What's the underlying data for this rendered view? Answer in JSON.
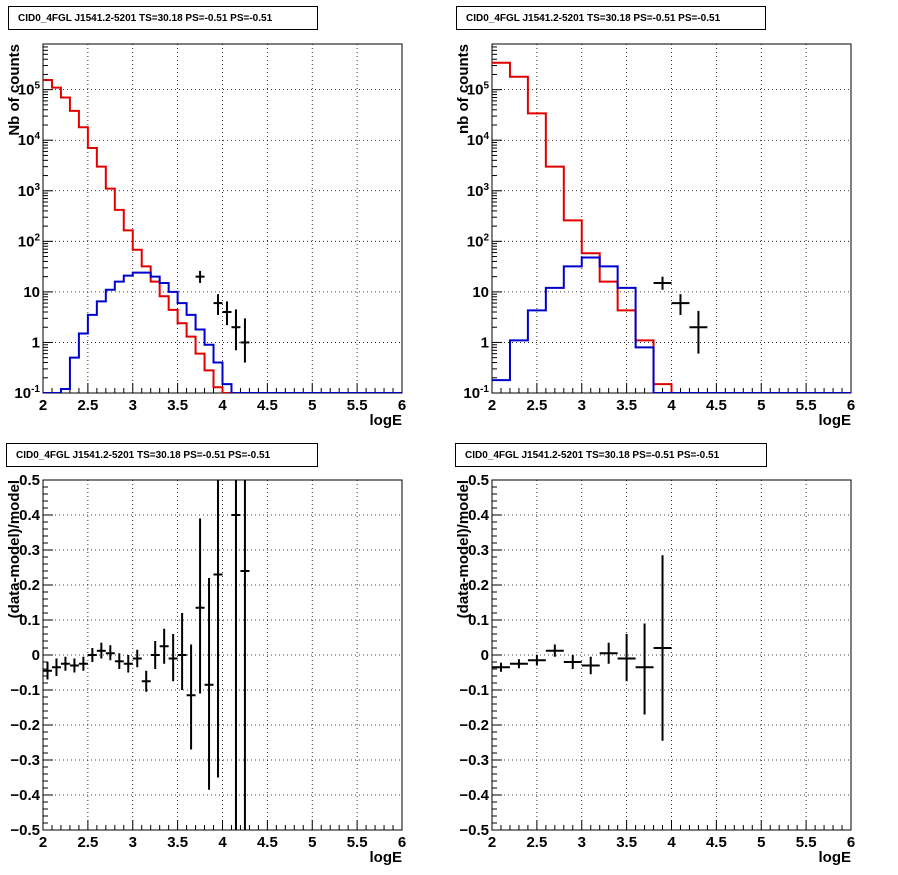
{
  "chart_data": [
    {
      "type": "line",
      "title": "CID0_4FGL J1541.2-5201 TS=30.18 PS=-0.51 PS=-0.51",
      "xlabel": "logE",
      "ylabel": "Nb of counts",
      "xlim": [
        2,
        6
      ],
      "ylim": [
        0.1,
        800000
      ],
      "yscale": "log",
      "xticks": [
        "2",
        "2.5",
        "3",
        "3.5",
        "4",
        "4.5",
        "5",
        "5.5",
        "6"
      ],
      "yticks": [
        "10^{-1}",
        "1",
        "10",
        "10^{2}",
        "10^{3}",
        "10^{4}",
        "10^{5}"
      ],
      "grid": true,
      "colors": {
        "model": "#e00000",
        "source": "#0000cc",
        "data": "#000000"
      },
      "series": [
        {
          "style": "step",
          "color": "#e00000",
          "edges_from": 2.0,
          "bin_width": 0.1,
          "values": [
            155000,
            110000,
            70000,
            38000,
            18000,
            7000,
            3000,
            1100,
            420,
            165,
            68,
            32,
            16,
            8.2,
            4.4,
            2.4,
            1.3,
            0.6,
            0.28,
            0.13,
            0.1,
            0.1,
            0.1,
            0.1,
            0.1,
            0.1,
            0.1,
            0.1,
            0.1,
            0.1,
            0.1,
            0.1,
            0.1,
            0.1,
            0.1,
            0.1,
            0.1,
            0.1,
            0.1,
            0.1
          ]
        },
        {
          "style": "step",
          "color": "#0000cc",
          "edges_from": 2.0,
          "bin_width": 0.1,
          "values": [
            0.1,
            0.1,
            0.12,
            0.5,
            1.5,
            3.5,
            6.5,
            11,
            16,
            21,
            24,
            24,
            20,
            15,
            10,
            6,
            3.5,
            1.8,
            0.9,
            0.4,
            0.15,
            0.1,
            0.1,
            0.1,
            0.1,
            0.1,
            0.1,
            0.1,
            0.1,
            0.1,
            0.1,
            0.1,
            0.1,
            0.1,
            0.1,
            0.1,
            0.1,
            0.1,
            0.1,
            0.1
          ]
        },
        {
          "style": "points",
          "color": "#000000",
          "bin_width": 0.1,
          "points": [
            {
              "x": 3.75,
              "y": 20,
              "lo": 15,
              "hi": 26
            },
            {
              "x": 3.95,
              "y": 6,
              "lo": 3.5,
              "hi": 9
            },
            {
              "x": 4.05,
              "y": 4,
              "lo": 2.2,
              "hi": 6.5
            },
            {
              "x": 4.15,
              "y": 2,
              "lo": 0.7,
              "hi": 4.5
            },
            {
              "x": 4.25,
              "y": 1,
              "lo": 0.4,
              "hi": 3
            }
          ]
        }
      ]
    },
    {
      "type": "line",
      "title": "CID0_4FGL J1541.2-5201 TS=30.18 PS=-0.51 PS=-0.51",
      "xlabel": "logE",
      "ylabel": "nb of counts",
      "xlim": [
        2,
        6
      ],
      "ylim": [
        0.1,
        800000
      ],
      "yscale": "log",
      "xticks": [
        "2",
        "2.5",
        "3",
        "3.5",
        "4",
        "4.5",
        "5",
        "5.5",
        "6"
      ],
      "yticks": [
        "10^{-1}",
        "1",
        "10",
        "10^{2}",
        "10^{3}",
        "10^{4}",
        "10^{5}"
      ],
      "grid": true,
      "colors": {
        "model": "#e00000",
        "source": "#0000cc",
        "data": "#000000"
      },
      "series": [
        {
          "style": "step",
          "color": "#e00000",
          "edges_from": 2.0,
          "bin_width": 0.2,
          "values": [
            340000,
            180000,
            34000,
            3000,
            260,
            58,
            16,
            4.3,
            1.1,
            0.15,
            0.1,
            0.1,
            0.1,
            0.1,
            0.1,
            0.1,
            0.1,
            0.1,
            0.1,
            0.1
          ]
        },
        {
          "style": "step",
          "color": "#0000cc",
          "edges_from": 2.0,
          "bin_width": 0.2,
          "values": [
            0.18,
            1.1,
            4.3,
            12,
            32,
            48,
            32,
            12,
            0.8,
            0.1,
            0.1,
            0.1,
            0.1,
            0.1,
            0.1,
            0.1,
            0.1,
            0.1,
            0.1,
            0.1
          ]
        },
        {
          "style": "points",
          "color": "#000000",
          "bin_width": 0.2,
          "points": [
            {
              "x": 3.9,
              "y": 15,
              "lo": 11,
              "hi": 20
            },
            {
              "x": 4.1,
              "y": 6,
              "lo": 3.5,
              "hi": 9
            },
            {
              "x": 4.3,
              "y": 2,
              "lo": 0.6,
              "hi": 4.2
            }
          ]
        }
      ]
    },
    {
      "type": "scatter",
      "title": "CID0_4FGL J1541.2-5201 TS=30.18 PS=-0.51 PS=-0.51",
      "xlabel": "logE",
      "ylabel": "(data-model)/model",
      "xlim": [
        2,
        6
      ],
      "ylim": [
        -0.5,
        0.5
      ],
      "xticks": [
        "2",
        "2.5",
        "3",
        "3.5",
        "4",
        "4.5",
        "5",
        "5.5",
        "6"
      ],
      "yticks": [
        "−0.5",
        "−0.4",
        "−0.3",
        "−0.2",
        "−0.1",
        "0",
        "0.1",
        "0.2",
        "0.3",
        "0.4",
        "0.5"
      ],
      "grid": true,
      "bin_width": 0.1,
      "points": [
        {
          "x": 2.05,
          "y": -0.045,
          "lo": -0.07,
          "hi": -0.02
        },
        {
          "x": 2.15,
          "y": -0.035,
          "lo": -0.06,
          "hi": -0.01
        },
        {
          "x": 2.25,
          "y": -0.025,
          "lo": -0.045,
          "hi": -0.005
        },
        {
          "x": 2.35,
          "y": -0.03,
          "lo": -0.05,
          "hi": -0.01
        },
        {
          "x": 2.45,
          "y": -0.025,
          "lo": -0.045,
          "hi": -0.005
        },
        {
          "x": 2.55,
          "y": 0.0,
          "lo": -0.02,
          "hi": 0.02
        },
        {
          "x": 2.65,
          "y": 0.012,
          "lo": -0.01,
          "hi": 0.035
        },
        {
          "x": 2.75,
          "y": 0.005,
          "lo": -0.015,
          "hi": 0.028
        },
        {
          "x": 2.85,
          "y": -0.018,
          "lo": -0.04,
          "hi": 0.005
        },
        {
          "x": 2.95,
          "y": -0.025,
          "lo": -0.05,
          "hi": 0.0
        },
        {
          "x": 3.05,
          "y": -0.01,
          "lo": -0.035,
          "hi": 0.015
        },
        {
          "x": 3.15,
          "y": -0.075,
          "lo": -0.105,
          "hi": -0.045
        },
        {
          "x": 3.25,
          "y": 0.0,
          "lo": -0.04,
          "hi": 0.04
        },
        {
          "x": 3.35,
          "y": 0.025,
          "lo": -0.025,
          "hi": 0.075
        },
        {
          "x": 3.45,
          "y": -0.01,
          "lo": -0.075,
          "hi": 0.06
        },
        {
          "x": 3.55,
          "y": 0.0,
          "lo": -0.1,
          "hi": 0.12
        },
        {
          "x": 3.65,
          "y": -0.115,
          "lo": -0.27,
          "hi": 0.03
        },
        {
          "x": 3.75,
          "y": 0.135,
          "lo": -0.11,
          "hi": 0.39
        },
        {
          "x": 3.85,
          "y": -0.085,
          "lo": -0.385,
          "hi": 0.22
        },
        {
          "x": 3.95,
          "y": 0.23,
          "lo": -0.35,
          "hi": 0.5
        },
        {
          "x": 4.15,
          "y": 0.4,
          "lo": -0.5,
          "hi": 0.5
        },
        {
          "x": 4.25,
          "y": 0.24,
          "lo": -0.5,
          "hi": 0.5
        }
      ]
    },
    {
      "type": "scatter",
      "title": "CID0_4FGL J1541.2-5201 TS=30.18 PS=-0.51 PS=-0.51",
      "xlabel": "logE",
      "ylabel": "(data-model)/model",
      "xlim": [
        2,
        6
      ],
      "ylim": [
        -0.5,
        0.5
      ],
      "xticks": [
        "2",
        "2.5",
        "3",
        "3.5",
        "4",
        "4.5",
        "5",
        "5.5",
        "6"
      ],
      "yticks": [
        "−0.5",
        "−0.4",
        "−0.3",
        "−0.2",
        "−0.1",
        "0",
        "0.1",
        "0.2",
        "0.3",
        "0.4",
        "0.5"
      ],
      "grid": true,
      "bin_width": 0.2,
      "points": [
        {
          "x": 2.1,
          "y": -0.035,
          "lo": -0.048,
          "hi": -0.022
        },
        {
          "x": 2.3,
          "y": -0.025,
          "lo": -0.038,
          "hi": -0.012
        },
        {
          "x": 2.5,
          "y": -0.015,
          "lo": -0.03,
          "hi": 0.0
        },
        {
          "x": 2.7,
          "y": 0.012,
          "lo": -0.005,
          "hi": 0.03
        },
        {
          "x": 2.9,
          "y": -0.02,
          "lo": -0.04,
          "hi": 0.0
        },
        {
          "x": 3.1,
          "y": -0.03,
          "lo": -0.055,
          "hi": -0.005
        },
        {
          "x": 3.3,
          "y": 0.005,
          "lo": -0.025,
          "hi": 0.035
        },
        {
          "x": 3.5,
          "y": -0.01,
          "lo": -0.075,
          "hi": 0.06
        },
        {
          "x": 3.7,
          "y": -0.035,
          "lo": -0.17,
          "hi": 0.09
        },
        {
          "x": 3.9,
          "y": 0.02,
          "lo": -0.245,
          "hi": 0.285
        }
      ]
    }
  ]
}
